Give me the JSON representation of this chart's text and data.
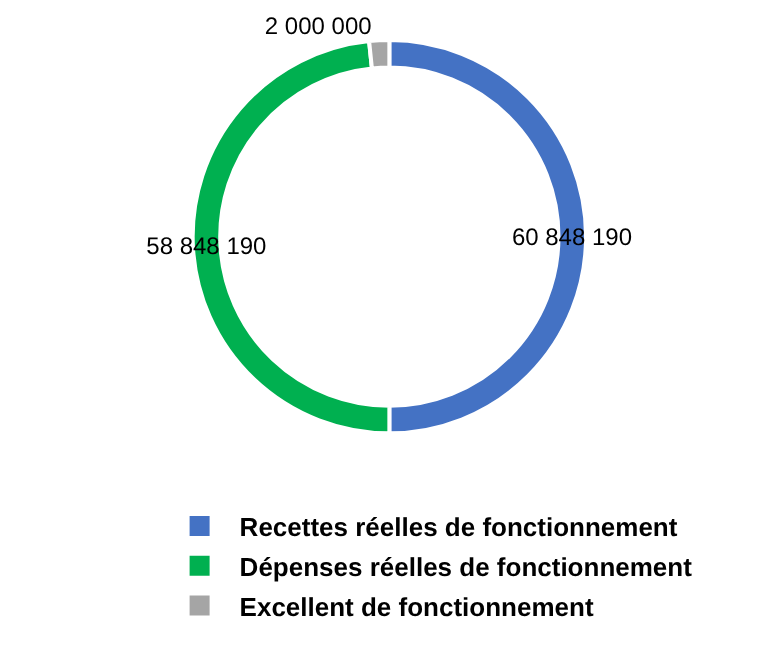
{
  "chart_data": {
    "type": "donut",
    "categories": [
      "Recettes réelles de fonctionnement",
      "Dépenses réelles de fonctionnement",
      "Excellent de fonctionnement"
    ],
    "values": [
      60848190,
      58848190,
      2000000
    ],
    "value_labels": [
      "60 848 190",
      "58 848 190",
      "2 000 000"
    ],
    "colors": [
      "#4472c4",
      "#00b050",
      "#a5a5a5"
    ],
    "legend": "bottom"
  }
}
